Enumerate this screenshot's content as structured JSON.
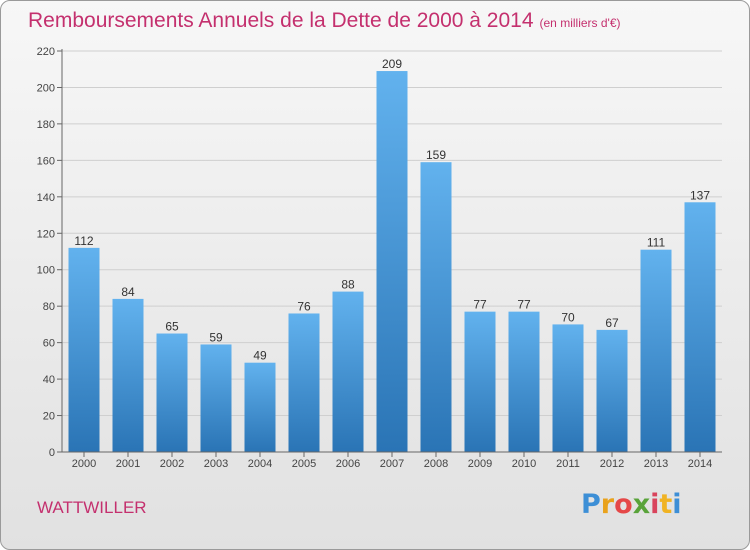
{
  "title": "Remboursements Annuels de la Dette de 2000 à 2014",
  "unit": "(en milliers d'€)",
  "commune": "WATTWILLER",
  "logo": {
    "letters": [
      "P",
      "r",
      "o",
      "x",
      "i",
      "t",
      "i"
    ],
    "colors": [
      "#3d8fd6",
      "#e9a21c",
      "#e54848",
      "#59a33a",
      "#d9445c",
      "#f0b323",
      "#3d8fd6"
    ]
  },
  "colors": {
    "title": "#c4306e",
    "bar_top": "#62b2ee",
    "bar_bottom": "#2a74b5",
    "grid": "#cfcfcf",
    "axis": "#666666"
  },
  "chart_data": {
    "type": "bar",
    "title": "Remboursements Annuels de la Dette de 2000 à 2014",
    "unit": "(en milliers d'€)",
    "categories": [
      "2000",
      "2001",
      "2002",
      "2003",
      "2004",
      "2005",
      "2006",
      "2007",
      "2008",
      "2009",
      "2010",
      "2011",
      "2012",
      "2013",
      "2014"
    ],
    "values": [
      112,
      84,
      65,
      59,
      49,
      76,
      88,
      209,
      159,
      77,
      77,
      70,
      67,
      111,
      137
    ],
    "ylim": [
      0,
      220
    ],
    "yticks": [
      0,
      20,
      40,
      60,
      80,
      100,
      120,
      140,
      160,
      180,
      200,
      220
    ],
    "grid": true,
    "data_labels": true
  }
}
